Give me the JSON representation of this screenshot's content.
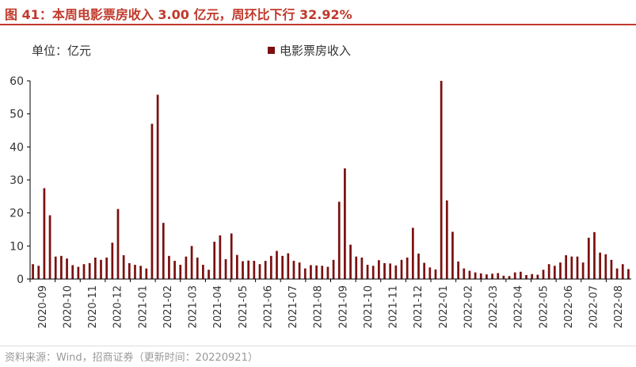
{
  "title": "图 41：本周电影票房收入 3.00 亿元，周环比下行 32.92%",
  "unit_label": "单位：亿元",
  "source": "资料来源：Wind，招商证券（更新时间：20220921）",
  "colors": {
    "title": "#c0392b",
    "bar": "#7b1010",
    "axis": "#000000",
    "source": "#999999"
  },
  "chart_data": {
    "type": "bar",
    "legend": [
      "电影票房收入"
    ],
    "legend_position": "top-center",
    "grid": false,
    "ylim": [
      0,
      60
    ],
    "yticks": [
      0,
      10,
      20,
      30,
      40,
      50,
      60
    ],
    "xlabel": "",
    "ylabel": "",
    "xtick_labels": [
      "2020-09",
      "2020-10",
      "2020-11",
      "2020-12",
      "2021-01",
      "2021-02",
      "2021-03",
      "2021-04",
      "2021-05",
      "2021-06",
      "2021-07",
      "2021-08",
      "2021-09",
      "2021-10",
      "2021-11",
      "2021-12",
      "2022-01",
      "2022-02",
      "2022-03",
      "2022-04",
      "2022-05",
      "2022-06",
      "2022-07",
      "2022-08"
    ],
    "series": [
      {
        "name": "电影票房收入",
        "values": [
          4.5,
          4.0,
          27.5,
          19.3,
          6.8,
          7.0,
          6.2,
          4.2,
          3.7,
          4.5,
          4.8,
          6.5,
          5.8,
          6.5,
          11.0,
          21.2,
          7.2,
          4.8,
          4.3,
          4.0,
          3.2,
          47.0,
          55.8,
          17.0,
          7.0,
          5.5,
          4.3,
          6.8,
          10.0,
          6.5,
          4.3,
          2.8,
          11.3,
          13.2,
          6.0,
          13.8,
          7.3,
          5.4,
          5.6,
          5.5,
          4.5,
          5.5,
          7.0,
          8.5,
          7.0,
          7.8,
          5.5,
          5.0,
          3.2,
          4.2,
          4.1,
          4.0,
          3.7,
          5.8,
          23.4,
          33.5,
          10.4,
          6.8,
          6.5,
          4.3,
          4.0,
          5.7,
          4.8,
          4.7,
          4.1,
          5.8,
          6.5,
          15.5,
          7.7,
          4.9,
          3.5,
          2.9,
          60.0,
          23.8,
          14.3,
          5.3,
          3.2,
          2.5,
          2.0,
          1.7,
          1.4,
          1.6,
          1.8,
          1.0,
          0.9,
          2.0,
          2.2,
          1.2,
          1.5,
          1.3,
          2.8,
          4.5,
          4.0,
          5.0,
          7.2,
          6.8,
          6.8,
          5.0,
          12.5,
          14.2,
          8.0,
          7.5,
          5.8,
          3.2,
          4.5,
          3.0
        ]
      }
    ]
  }
}
